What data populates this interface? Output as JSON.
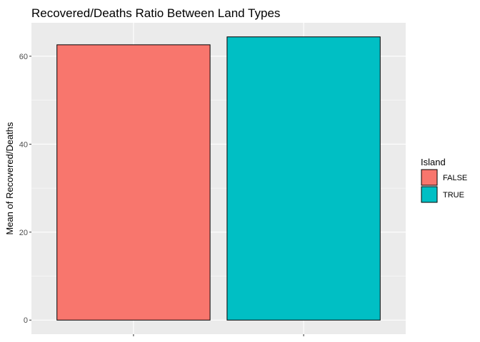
{
  "chart_data": {
    "type": "bar",
    "title": "Recovered/Deaths Ratio Between Land Types",
    "xlabel": "",
    "ylabel": "Mean of Recovered/Deaths",
    "categories": [
      "FALSE",
      "TRUE"
    ],
    "values": [
      62.6,
      64.4
    ],
    "ylim": [
      -3.2,
      67.6
    ],
    "yticks": [
      0,
      20,
      40,
      60
    ],
    "grid": true,
    "legend": {
      "title": "Island",
      "placement": "right",
      "entries": [
        "FALSE",
        "TRUE"
      ]
    },
    "colors": {
      "FALSE": "#F8766D",
      "TRUE": "#00BFC4",
      "panel": "#EBEBEB",
      "grid_major": "#FFFFFF",
      "bar_outline": "#000000"
    }
  }
}
